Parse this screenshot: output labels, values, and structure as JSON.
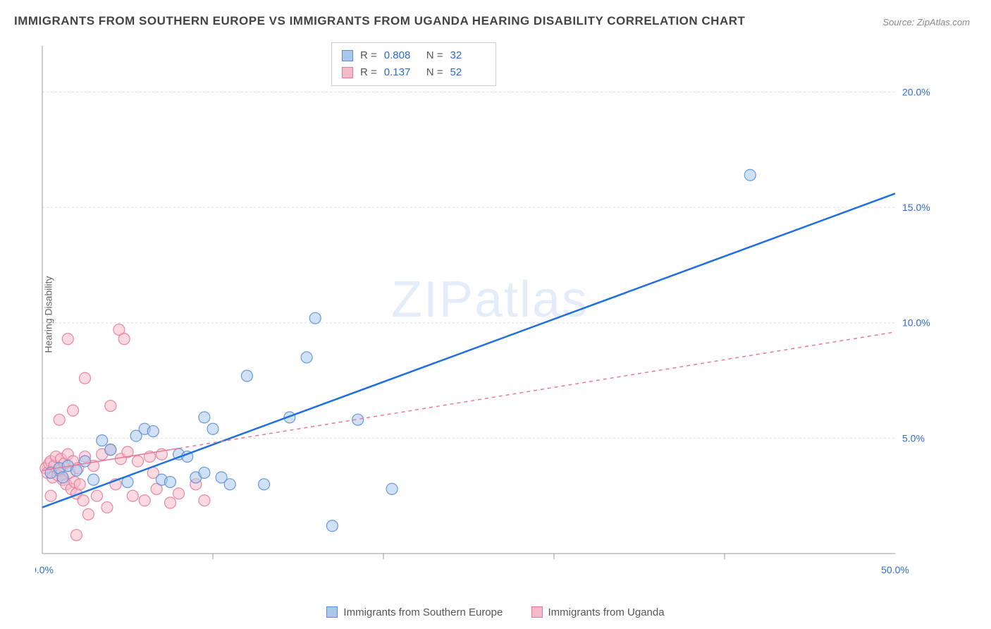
{
  "title": "IMMIGRANTS FROM SOUTHERN EUROPE VS IMMIGRANTS FROM UGANDA HEARING DISABILITY CORRELATION CHART",
  "source_label": "Source:",
  "source_name": "ZipAtlas.com",
  "y_axis_label": "Hearing Disability",
  "watermark": "ZIPatlas",
  "chart": {
    "type": "scatter",
    "xlim": [
      0,
      50
    ],
    "ylim": [
      0,
      22
    ],
    "y_ticks": [
      5.0,
      10.0,
      15.0,
      20.0
    ],
    "y_tick_labels": [
      "5.0%",
      "10.0%",
      "15.0%",
      "20.0%"
    ],
    "x_ticks": [
      0.0,
      50.0
    ],
    "x_tick_labels": [
      "0.0%",
      "50.0%"
    ],
    "x_minor_ticks": [
      10,
      20,
      30,
      40
    ],
    "background_color": "#ffffff",
    "grid_color": "#dddddd",
    "axis_color": "#999999",
    "tick_label_color": "#2b6cd4",
    "marker_radius": 8,
    "marker_opacity": 0.55,
    "marker_stroke_opacity": 0.9
  },
  "series": [
    {
      "name": "Immigrants from Southern Europe",
      "color_fill": "#a9c7ec",
      "color_stroke": "#5a8fd6",
      "line_color": "#1f6fe0",
      "line_width": 2.5,
      "line_dash": "none",
      "R_label": "R =",
      "R_value": "0.808",
      "N_label": "N =",
      "N_value": "32",
      "trend": {
        "x1": 0,
        "y1": 2.0,
        "x2": 50,
        "y2": 15.6
      },
      "trend_solid_until_x": 50,
      "points": [
        [
          0.5,
          3.5
        ],
        [
          1.0,
          3.7
        ],
        [
          1.2,
          3.3
        ],
        [
          1.5,
          3.8
        ],
        [
          2.0,
          3.6
        ],
        [
          2.5,
          4.0
        ],
        [
          3.0,
          3.2
        ],
        [
          3.5,
          4.9
        ],
        [
          4.0,
          4.5
        ],
        [
          5.0,
          3.1
        ],
        [
          5.5,
          5.1
        ],
        [
          6.0,
          5.4
        ],
        [
          6.5,
          5.3
        ],
        [
          7.0,
          3.2
        ],
        [
          7.5,
          3.1
        ],
        [
          8.0,
          4.3
        ],
        [
          9.0,
          3.3
        ],
        [
          9.5,
          3.5
        ],
        [
          10.0,
          5.4
        ],
        [
          10.5,
          3.3
        ],
        [
          11.0,
          3.0
        ],
        [
          12.0,
          7.7
        ],
        [
          13.0,
          3.0
        ],
        [
          14.5,
          5.9
        ],
        [
          15.5,
          8.5
        ],
        [
          16.0,
          10.2
        ],
        [
          18.5,
          5.8
        ],
        [
          20.5,
          2.8
        ],
        [
          17.0,
          1.2
        ],
        [
          9.5,
          5.9
        ],
        [
          41.5,
          16.4
        ],
        [
          8.5,
          4.2
        ]
      ]
    },
    {
      "name": "Immigrants from Uganda",
      "color_fill": "#f6b9c8",
      "color_stroke": "#e77a98",
      "line_color": "#e77a98",
      "line_width": 1.5,
      "line_dash": "5,5",
      "R_label": "R =",
      "R_value": "0.137",
      "N_label": "N =",
      "N_value": "52",
      "trend": {
        "x1": 0,
        "y1": 3.6,
        "x2": 50,
        "y2": 9.6
      },
      "trend_solid_until_x": 8,
      "points": [
        [
          0.2,
          3.7
        ],
        [
          0.3,
          3.5
        ],
        [
          0.4,
          3.9
        ],
        [
          0.5,
          4.0
        ],
        [
          0.6,
          3.3
        ],
        [
          0.7,
          3.8
        ],
        [
          0.8,
          4.2
        ],
        [
          0.9,
          3.4
        ],
        [
          1.0,
          3.6
        ],
        [
          1.1,
          4.1
        ],
        [
          1.2,
          3.2
        ],
        [
          1.3,
          3.9
        ],
        [
          1.4,
          3.0
        ],
        [
          1.5,
          4.3
        ],
        [
          1.6,
          3.5
        ],
        [
          1.7,
          2.8
        ],
        [
          1.8,
          4.0
        ],
        [
          1.9,
          3.1
        ],
        [
          2.0,
          2.6
        ],
        [
          2.1,
          3.7
        ],
        [
          2.2,
          3.0
        ],
        [
          2.4,
          2.3
        ],
        [
          2.5,
          4.2
        ],
        [
          2.7,
          1.7
        ],
        [
          3.0,
          3.8
        ],
        [
          3.2,
          2.5
        ],
        [
          3.5,
          4.3
        ],
        [
          3.8,
          2.0
        ],
        [
          4.0,
          4.5
        ],
        [
          4.3,
          3.0
        ],
        [
          4.6,
          4.1
        ],
        [
          5.0,
          4.4
        ],
        [
          5.3,
          2.5
        ],
        [
          5.6,
          4.0
        ],
        [
          6.0,
          2.3
        ],
        [
          6.3,
          4.2
        ],
        [
          6.7,
          2.8
        ],
        [
          7.0,
          4.3
        ],
        [
          7.5,
          2.2
        ],
        [
          8.0,
          2.6
        ],
        [
          1.0,
          5.8
        ],
        [
          1.5,
          9.3
        ],
        [
          2.5,
          7.6
        ],
        [
          1.8,
          6.2
        ],
        [
          4.0,
          6.4
        ],
        [
          4.5,
          9.7
        ],
        [
          4.8,
          9.3
        ],
        [
          6.5,
          3.5
        ],
        [
          9.0,
          3.0
        ],
        [
          9.5,
          2.3
        ],
        [
          2.0,
          0.8
        ],
        [
          0.5,
          2.5
        ]
      ]
    }
  ],
  "bottom_legend": {
    "items": [
      {
        "swatch_fill": "#a9c7ec",
        "swatch_stroke": "#5a8fd6",
        "label": "Immigrants from Southern Europe"
      },
      {
        "swatch_fill": "#f6b9c8",
        "swatch_stroke": "#e77a98",
        "label": "Immigrants from Uganda"
      }
    ]
  }
}
